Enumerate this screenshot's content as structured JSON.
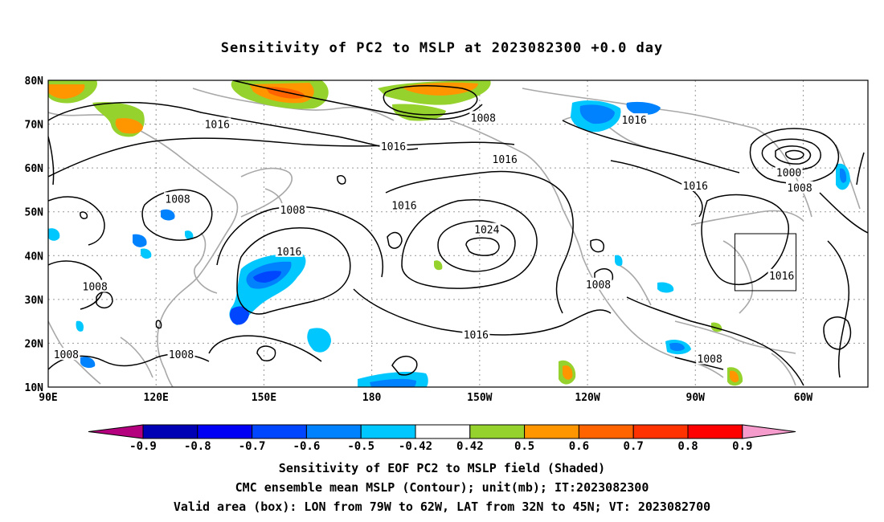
{
  "title": "Sensitivity of PC2 to MSLP at 2023082300 +0.0 day",
  "map": {
    "lat_labels": [
      "80N",
      "70N",
      "60N",
      "50N",
      "40N",
      "30N",
      "20N",
      "10N"
    ],
    "lon_labels": [
      "90E",
      "120E",
      "150E",
      "180",
      "150W",
      "120W",
      "90W",
      "60W"
    ],
    "contour_labels": [
      {
        "text": "1016",
        "lon": 137,
        "lat": 70
      },
      {
        "text": "1016",
        "lon": 186,
        "lat": 65
      },
      {
        "text": "1008",
        "lon": 211,
        "lat": 71.5
      },
      {
        "text": "1016",
        "lon": 253,
        "lat": 71
      },
      {
        "text": "1016",
        "lon": 217,
        "lat": 62
      },
      {
        "text": "1016",
        "lon": 270,
        "lat": 56
      },
      {
        "text": "1000",
        "lon": 296,
        "lat": 59
      },
      {
        "text": "1008",
        "lon": 299,
        "lat": 55.5
      },
      {
        "text": "1008",
        "lon": 126,
        "lat": 53
      },
      {
        "text": "1008",
        "lon": 158,
        "lat": 50.5
      },
      {
        "text": "1016",
        "lon": 189,
        "lat": 51.5
      },
      {
        "text": "1016",
        "lon": 157,
        "lat": 41
      },
      {
        "text": "1024",
        "lon": 212,
        "lat": 46
      },
      {
        "text": "1008",
        "lon": 103,
        "lat": 33
      },
      {
        "text": "1008",
        "lon": 243,
        "lat": 33.5
      },
      {
        "text": "1016",
        "lon": 294,
        "lat": 35.5
      },
      {
        "text": "1016",
        "lon": 209,
        "lat": 22
      },
      {
        "text": "1008",
        "lon": 95,
        "lat": 17.5
      },
      {
        "text": "1008",
        "lon": 127,
        "lat": 17.5
      },
      {
        "text": "1008",
        "lon": 274,
        "lat": 16.5
      }
    ],
    "valid_box": {
      "lon_min": -79,
      "lon_max": -62,
      "lat_min": 32,
      "lat_max": 45
    }
  },
  "colorbar": {
    "labels": [
      "-0.9",
      "-0.8",
      "-0.7",
      "-0.6",
      "-0.5",
      "-0.42",
      "0.42",
      "0.5",
      "0.6",
      "0.7",
      "0.8",
      "0.9"
    ],
    "colors": [
      "#b4007f",
      "#0000b4",
      "#0000f5",
      "#0046ff",
      "#0082ff",
      "#00c8ff",
      "#ffffff",
      "#96d22d",
      "#ff9600",
      "#ff6400",
      "#ff3200",
      "#ff0000",
      "#f59ccd"
    ]
  },
  "caption": {
    "line1": "Sensitivity of EOF PC2 to MSLP field (Shaded)",
    "line2": "CMC ensemble mean MSLP (Contour); unit(mb); IT:2023082300",
    "line3": "Valid area (box): LON from 79W to 62W, LAT from 32N to 45N; VT: 2023082700"
  }
}
